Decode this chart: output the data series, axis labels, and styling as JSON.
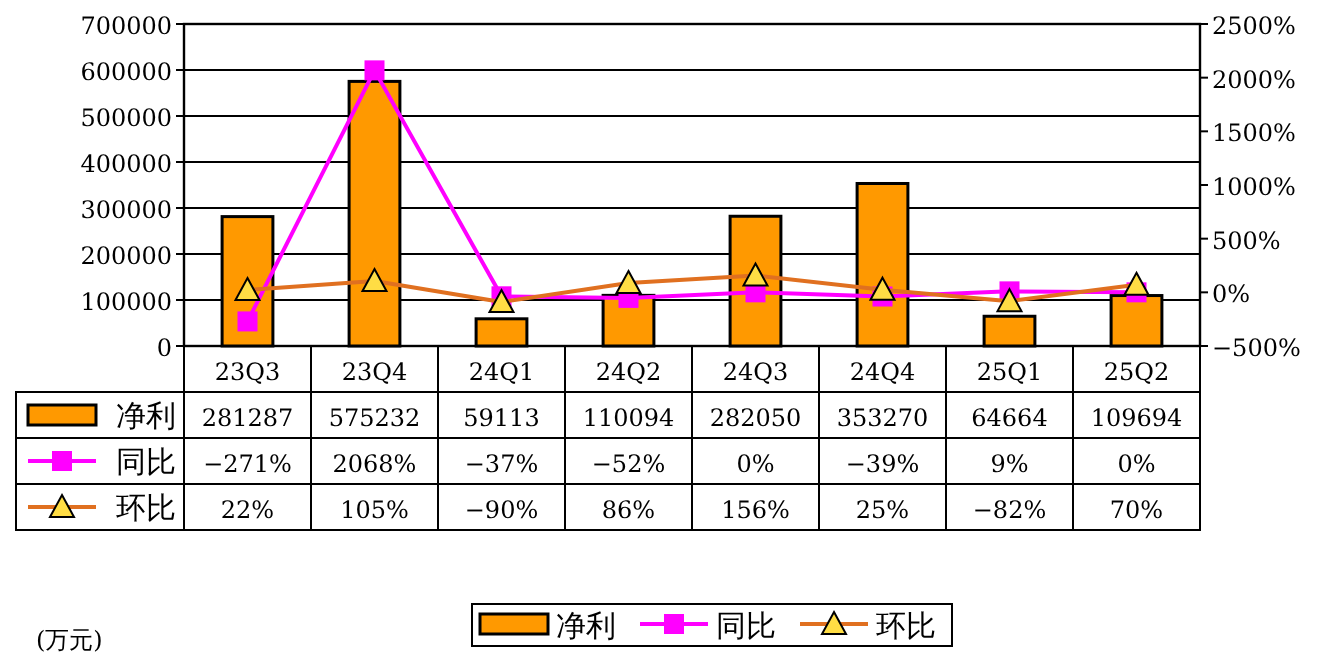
{
  "chart_data": {
    "type": "bar",
    "categories": [
      "23Q3",
      "23Q4",
      "24Q1",
      "24Q2",
      "24Q3",
      "24Q4",
      "25Q1",
      "25Q2"
    ],
    "series": [
      {
        "name": "净利",
        "color": "#ff9900",
        "values": [
          281287,
          575232,
          59113,
          110094,
          282050,
          353270,
          64664,
          109694
        ],
        "value_labels": [
          "281287",
          "575232",
          "59113",
          "110094",
          "282050",
          "353270",
          "64664",
          "109694"
        ]
      },
      {
        "name": "同比",
        "type": "line",
        "axis": "y2",
        "marker": "square",
        "color": "#ff00ff",
        "values": [
          -271,
          2068,
          -37,
          -52,
          0,
          -39,
          9,
          0
        ],
        "value_labels": [
          "−271%",
          "2068%",
          "−37%",
          "−52%",
          "0%",
          "−39%",
          "9%",
          "0%"
        ]
      },
      {
        "name": "环比",
        "type": "line",
        "axis": "y2",
        "marker": "triangle",
        "color": "#e07020",
        "values": [
          22,
          105,
          -90,
          86,
          156,
          25,
          -82,
          70
        ],
        "value_labels": [
          "22%",
          "105%",
          "−90%",
          "86%",
          "156%",
          "25%",
          "−82%",
          "70%"
        ]
      }
    ],
    "ylim": [
      0,
      700000
    ],
    "yticks": [
      0,
      100000,
      200000,
      300000,
      400000,
      500000,
      600000,
      700000
    ],
    "y2lim": [
      -500,
      2500
    ],
    "y2ticks": [
      {
        "value": -500,
        "label": "−500%"
      },
      {
        "value": 0,
        "label": "0%"
      },
      {
        "value": 500,
        "label": "500%"
      },
      {
        "value": 1000,
        "label": "1000%"
      },
      {
        "value": 1500,
        "label": "1500%"
      },
      {
        "value": 2000,
        "label": "2000%"
      },
      {
        "value": 2500,
        "label": "2500%"
      }
    ],
    "grid": "y",
    "legend": "bottom",
    "annotations": [
      "(万元)"
    ]
  }
}
